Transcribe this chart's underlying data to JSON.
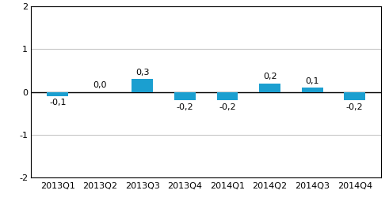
{
  "categories": [
    "2013Q1",
    "2013Q2",
    "2013Q3",
    "2013Q4",
    "2014Q1",
    "2014Q2",
    "2014Q3",
    "2014Q4"
  ],
  "values": [
    -0.1,
    0.0,
    0.3,
    -0.2,
    -0.2,
    0.2,
    0.1,
    -0.2
  ],
  "bar_color": "#1b9fd0",
  "ylim": [
    -2,
    2
  ],
  "yticks": [
    -2,
    -1,
    0,
    1,
    2
  ],
  "background_color": "#ffffff",
  "grid_color": "#c8c8c8",
  "label_fontsize": 8,
  "tick_fontsize": 8,
  "spine_color": "#000000",
  "bar_width": 0.5
}
